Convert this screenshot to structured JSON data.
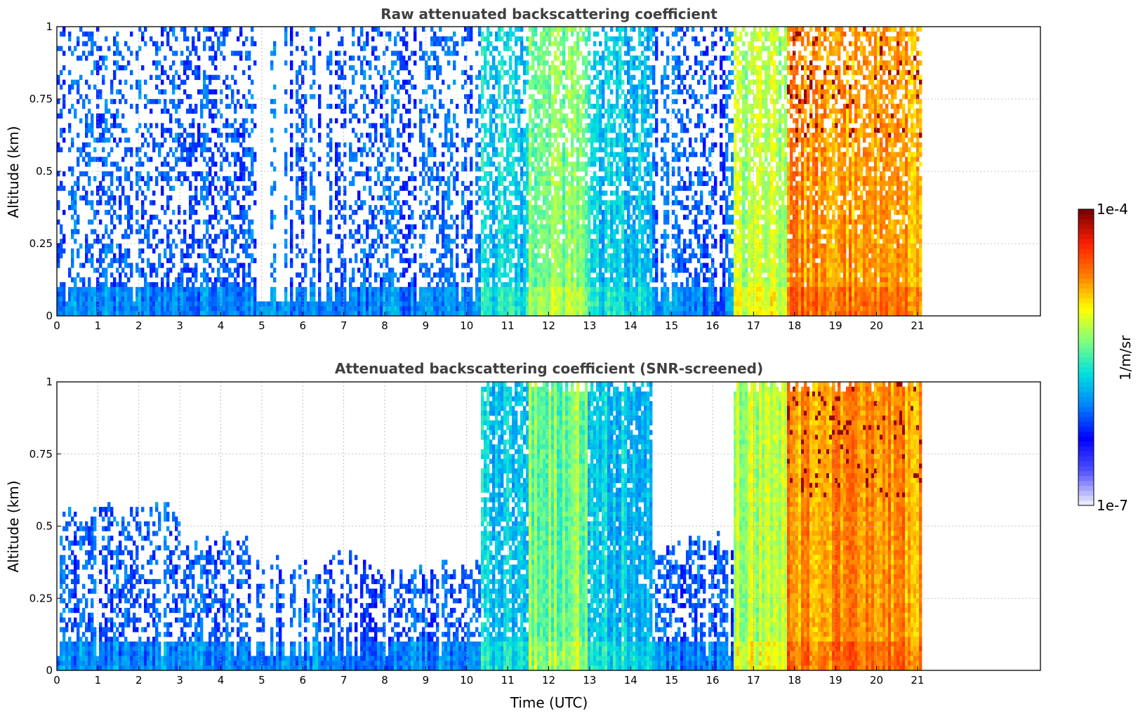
{
  "chart_data": [
    {
      "type": "heatmap",
      "title": "Raw attenuated backscattering coefficient",
      "xlabel": "",
      "ylabel": "Altitude (km)",
      "xlim": [
        0,
        24
      ],
      "ylim": [
        0,
        1
      ],
      "x_ticks": [
        "0",
        "1",
        "2",
        "3",
        "4",
        "5",
        "6",
        "7",
        "8",
        "9",
        "10",
        "11",
        "12",
        "13",
        "14",
        "15",
        "16",
        "17",
        "18",
        "19",
        "20",
        "21"
      ],
      "y_ticks": [
        "0",
        "0.25",
        "0.5",
        "0.75",
        "1"
      ],
      "grid": true,
      "data_extent_hours": [
        0,
        21.1
      ],
      "segments": [
        {
          "start": 0,
          "end": 3,
          "level": "low",
          "density": 0.45
        },
        {
          "start": 3,
          "end": 4.7,
          "level": "low",
          "density": 0.5
        },
        {
          "start": 4.7,
          "end": 7.3,
          "level": "low-striped",
          "density": 0.5
        },
        {
          "start": 7.3,
          "end": 10.3,
          "level": "low",
          "density": 0.5
        },
        {
          "start": 10.3,
          "end": 11.45,
          "level": "medium-low",
          "density": 0.8
        },
        {
          "start": 11.45,
          "end": 12.9,
          "level": "medium",
          "density": 1.0
        },
        {
          "start": 12.9,
          "end": 14.5,
          "level": "medium-low",
          "density": 0.9
        },
        {
          "start": 14.5,
          "end": 16.45,
          "level": "low",
          "density": 0.55
        },
        {
          "start": 16.45,
          "end": 17.8,
          "level": "medium-high",
          "density": 1.0
        },
        {
          "start": 17.8,
          "end": 21.1,
          "level": "high",
          "density": 1.0
        }
      ]
    },
    {
      "type": "heatmap",
      "title": "Attenuated backscattering coefficient (SNR-screened)",
      "xlabel": "Time (UTC)",
      "ylabel": "Altitude (km)",
      "xlim": [
        0,
        24
      ],
      "ylim": [
        0,
        1
      ],
      "x_ticks": [
        "0",
        "1",
        "2",
        "3",
        "4",
        "5",
        "6",
        "7",
        "8",
        "9",
        "10",
        "11",
        "12",
        "13",
        "14",
        "15",
        "16",
        "17",
        "18",
        "19",
        "20",
        "21"
      ],
      "y_ticks": [
        "0",
        "0.25",
        "0.5",
        "0.75",
        "1"
      ],
      "grid": true,
      "data_extent_hours": [
        0,
        21.1
      ],
      "screen_top_km": [
        {
          "start": 0,
          "end": 3,
          "top": 0.55
        },
        {
          "start": 3,
          "end": 4.7,
          "top": 0.45
        },
        {
          "start": 4.7,
          "end": 7.3,
          "top": 0.38
        },
        {
          "start": 7.3,
          "end": 10.3,
          "top": 0.35
        },
        {
          "start": 10.3,
          "end": 14.5,
          "top": 1.0
        },
        {
          "start": 14.5,
          "end": 16.45,
          "top": 0.45
        },
        {
          "start": 16.45,
          "end": 21.1,
          "top": 1.0
        }
      ]
    }
  ],
  "colorbar": {
    "label": "1/m/sr",
    "min_label": "1e-7",
    "max_label": "1e-4",
    "scale": "log",
    "colormap": [
      "#e8e8ff",
      "#5050ff",
      "#0000ff",
      "#0080ff",
      "#00e0e0",
      "#80ff80",
      "#ffff00",
      "#ff8000",
      "#ff2000",
      "#800000"
    ]
  }
}
